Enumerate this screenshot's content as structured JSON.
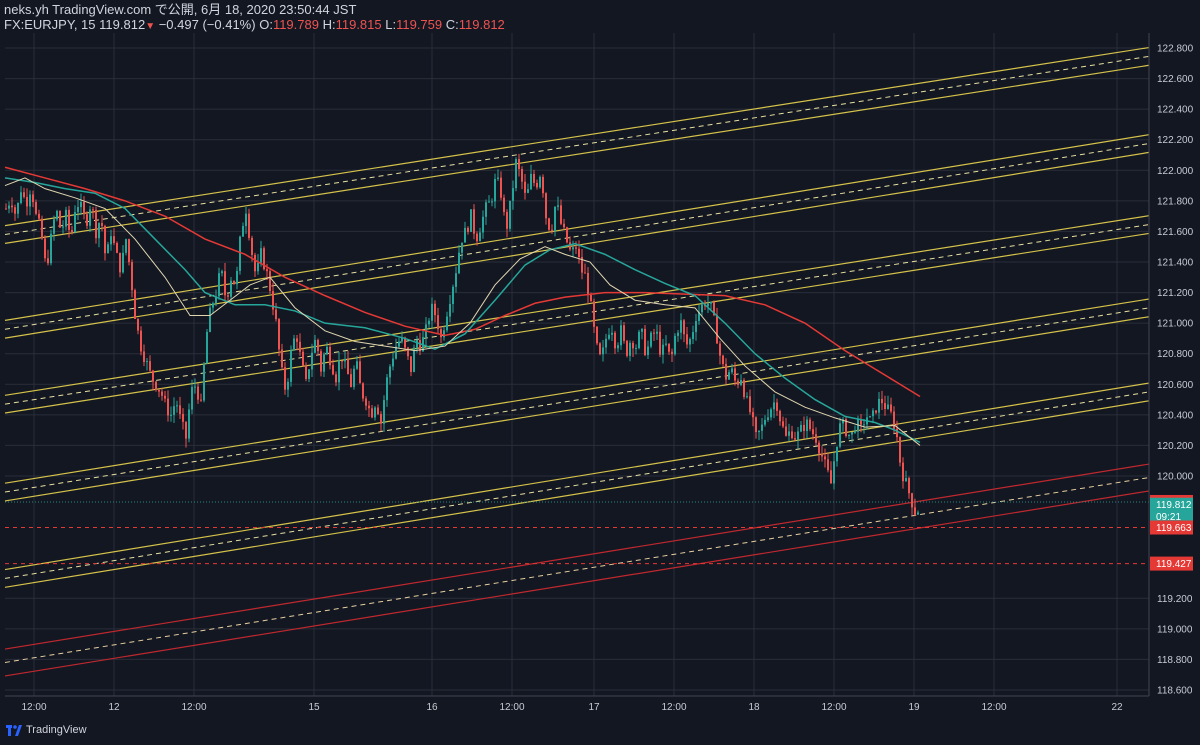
{
  "header": {
    "line1": "neks.yh TradingView.com で公開, 6月 18, 2020 23:50:44 JST",
    "symbol": "FX:EURJPY, 15",
    "price": "119.812",
    "change": "−0.497 (−0.41%)",
    "o_label": "O:",
    "o_val": "119.789",
    "h_label": "H:",
    "h_val": "119.815",
    "l_label": "L:",
    "l_val": "119.759",
    "c_label": "C:",
    "c_val": "119.812"
  },
  "footer": {
    "brand": "TradingView"
  },
  "colors": {
    "background": "#131722",
    "grid": "#2a2e39",
    "up": "#26a69a",
    "down": "#ef5350",
    "channel": "#d4c24a",
    "channel_mid": "#e8e0a0",
    "red_channel": "#c0282e",
    "ma_red": "#e53935",
    "ma_teal": "#26a69a",
    "ma_cream": "#e0d6b0"
  },
  "chart_data": {
    "type": "candlestick",
    "symbol": "FX:EURJPY",
    "interval": "15",
    "ylim": [
      118.55,
      122.88
    ],
    "y_ticks": [
      "122.800",
      "122.600",
      "122.400",
      "122.200",
      "122.000",
      "121.800",
      "121.600",
      "121.400",
      "121.200",
      "121.000",
      "120.800",
      "120.600",
      "120.400",
      "120.200",
      "120.000",
      "119.200",
      "119.000",
      "118.800",
      "118.600"
    ],
    "x_ticks": [
      "12:00",
      "12",
      "12:00",
      "15",
      "16",
      "12:00",
      "17",
      "12:00",
      "18",
      "12:00",
      "19",
      "12:00",
      "22"
    ],
    "price_labels": [
      {
        "text": "119.830",
        "value": 119.83,
        "color": "#e53935"
      },
      {
        "text": "119.812",
        "value": 119.812,
        "color": "#26a69a"
      },
      {
        "text": "09:21",
        "value": 119.735,
        "color": "#26a69a"
      },
      {
        "text": "119.663",
        "value": 119.663,
        "color": "#e53935"
      },
      {
        "text": "119.427",
        "value": 119.427,
        "color": "#e53935"
      }
    ],
    "path": [
      [
        0,
        121.75
      ],
      [
        5,
        121.82
      ],
      [
        10,
        121.7
      ],
      [
        15,
        121.88
      ],
      [
        20,
        121.78
      ],
      [
        25,
        121.9
      ],
      [
        30,
        121.7
      ],
      [
        35,
        121.6
      ],
      [
        40,
        121.35
      ],
      [
        45,
        121.55
      ],
      [
        50,
        121.75
      ],
      [
        55,
        121.6
      ],
      [
        60,
        121.7
      ],
      [
        65,
        121.55
      ],
      [
        70,
        121.8
      ],
      [
        75,
        121.75
      ],
      [
        80,
        121.65
      ],
      [
        85,
        121.8
      ],
      [
        90,
        121.6
      ],
      [
        95,
        121.7
      ],
      [
        100,
        121.4
      ],
      [
        105,
        121.6
      ],
      [
        110,
        121.45
      ],
      [
        115,
        121.35
      ],
      [
        120,
        121.55
      ],
      [
        125,
        121.3
      ],
      [
        130,
        121.0
      ],
      [
        135,
        120.85
      ],
      [
        140,
        120.75
      ],
      [
        145,
        120.65
      ],
      [
        150,
        120.6
      ],
      [
        155,
        120.55
      ],
      [
        160,
        120.45
      ],
      [
        165,
        120.4
      ],
      [
        170,
        120.5
      ],
      [
        175,
        120.35
      ],
      [
        180,
        120.25
      ],
      [
        185,
        120.55
      ],
      [
        190,
        120.6
      ],
      [
        195,
        120.45
      ],
      [
        200,
        120.9
      ],
      [
        205,
        121.1
      ],
      [
        210,
        121.2
      ],
      [
        215,
        121.35
      ],
      [
        220,
        121.15
      ],
      [
        225,
        121.3
      ],
      [
        230,
        121.25
      ],
      [
        235,
        121.6
      ],
      [
        240,
        121.75
      ],
      [
        245,
        121.5
      ],
      [
        250,
        121.3
      ],
      [
        255,
        121.45
      ],
      [
        260,
        121.35
      ],
      [
        265,
        121.2
      ],
      [
        270,
        121.0
      ],
      [
        275,
        120.7
      ],
      [
        280,
        120.55
      ],
      [
        285,
        120.8
      ],
      [
        290,
        120.95
      ],
      [
        295,
        120.75
      ],
      [
        300,
        120.6
      ],
      [
        305,
        120.8
      ],
      [
        310,
        120.9
      ],
      [
        315,
        120.7
      ],
      [
        320,
        120.85
      ],
      [
        325,
        120.75
      ],
      [
        330,
        120.65
      ],
      [
        335,
        120.8
      ],
      [
        340,
        120.7
      ],
      [
        345,
        120.6
      ],
      [
        350,
        120.75
      ],
      [
        355,
        120.55
      ],
      [
        360,
        120.5
      ],
      [
        365,
        120.4
      ],
      [
        370,
        120.5
      ],
      [
        375,
        120.35
      ],
      [
        380,
        120.6
      ],
      [
        385,
        120.75
      ],
      [
        390,
        120.85
      ],
      [
        395,
        120.9
      ],
      [
        400,
        120.8
      ],
      [
        405,
        120.7
      ],
      [
        410,
        120.9
      ],
      [
        415,
        120.85
      ],
      [
        420,
        120.95
      ],
      [
        425,
        121.1
      ],
      [
        430,
        121.05
      ],
      [
        435,
        120.9
      ],
      [
        440,
        121.05
      ],
      [
        445,
        121.2
      ],
      [
        450,
        121.35
      ],
      [
        455,
        121.55
      ],
      [
        460,
        121.6
      ],
      [
        465,
        121.7
      ],
      [
        470,
        121.55
      ],
      [
        475,
        121.65
      ],
      [
        480,
        121.75
      ],
      [
        485,
        121.8
      ],
      [
        490,
        121.95
      ],
      [
        495,
        121.85
      ],
      [
        500,
        121.6
      ],
      [
        505,
        121.8
      ],
      [
        510,
        122.05
      ],
      [
        515,
        121.95
      ],
      [
        520,
        121.8
      ],
      [
        525,
        121.95
      ],
      [
        530,
        121.9
      ],
      [
        535,
        122.0
      ],
      [
        540,
        121.7
      ],
      [
        545,
        121.6
      ],
      [
        550,
        121.8
      ],
      [
        555,
        121.65
      ],
      [
        560,
        121.55
      ],
      [
        565,
        121.45
      ],
      [
        570,
        121.5
      ],
      [
        575,
        121.35
      ],
      [
        580,
        121.3
      ],
      [
        585,
        121.1
      ],
      [
        590,
        120.85
      ],
      [
        595,
        120.75
      ],
      [
        600,
        120.9
      ],
      [
        605,
        121.0
      ],
      [
        610,
        120.85
      ],
      [
        615,
        120.95
      ],
      [
        620,
        120.8
      ],
      [
        625,
        120.9
      ],
      [
        630,
        120.85
      ],
      [
        635,
        120.95
      ],
      [
        640,
        120.8
      ],
      [
        645,
        120.9
      ],
      [
        650,
        120.95
      ],
      [
        655,
        120.8
      ],
      [
        660,
        120.85
      ],
      [
        665,
        120.75
      ],
      [
        670,
        120.95
      ],
      [
        675,
        121.0
      ],
      [
        680,
        120.85
      ],
      [
        685,
        120.9
      ],
      [
        690,
        121.05
      ],
      [
        695,
        121.1
      ],
      [
        700,
        121.15
      ],
      [
        705,
        121.1
      ],
      [
        710,
        120.95
      ],
      [
        715,
        120.75
      ],
      [
        720,
        120.65
      ],
      [
        725,
        120.7
      ],
      [
        730,
        120.6
      ],
      [
        735,
        120.65
      ],
      [
        740,
        120.5
      ],
      [
        745,
        120.4
      ],
      [
        750,
        120.25
      ],
      [
        755,
        120.3
      ],
      [
        760,
        120.4
      ],
      [
        765,
        120.45
      ],
      [
        770,
        120.5
      ],
      [
        775,
        120.35
      ],
      [
        780,
        120.25
      ],
      [
        785,
        120.3
      ],
      [
        790,
        120.25
      ],
      [
        795,
        120.3
      ],
      [
        800,
        120.35
      ],
      [
        805,
        120.3
      ],
      [
        810,
        120.25
      ],
      [
        815,
        120.15
      ],
      [
        820,
        120.05
      ],
      [
        825,
        119.95
      ],
      [
        830,
        120.2
      ],
      [
        835,
        120.35
      ],
      [
        840,
        120.3
      ],
      [
        845,
        120.25
      ],
      [
        850,
        120.35
      ],
      [
        855,
        120.3
      ],
      [
        860,
        120.4
      ],
      [
        865,
        120.35
      ],
      [
        870,
        120.45
      ],
      [
        875,
        120.5
      ],
      [
        880,
        120.45
      ],
      [
        885,
        120.4
      ],
      [
        890,
        120.3
      ],
      [
        895,
        120.05
      ],
      [
        900,
        119.95
      ],
      [
        905,
        119.85
      ],
      [
        910,
        119.75
      ],
      [
        914,
        119.81
      ]
    ],
    "channels": [
      {
        "name": "yellow-channel-top",
        "color": "#d4c24a",
        "left_center": 121.58,
        "right_center": 122.745,
        "half_width": 0.058
      },
      {
        "name": "yellow-channel-upper",
        "color": "#d4c24a",
        "left_center": 120.96,
        "right_center": 122.175,
        "half_width": 0.058
      },
      {
        "name": "yellow-channel-middle",
        "color": "#d4c24a",
        "left_center": 120.47,
        "right_center": 121.645,
        "half_width": 0.058
      },
      {
        "name": "yellow-channel-lower",
        "color": "#d4c24a",
        "left_center": 119.895,
        "right_center": 121.1,
        "half_width": 0.058
      },
      {
        "name": "yellow-channel-bottom",
        "color": "#d4c24a",
        "left_center": 119.33,
        "right_center": 120.55,
        "half_width": 0.058
      },
      {
        "name": "red-channel",
        "color": "#c0282e",
        "left_center": 118.78,
        "right_center": 119.99,
        "half_width": 0.088
      }
    ],
    "moving_averages": [
      {
        "name": "ma-red",
        "color": "#e53935",
        "points": [
          [
            0,
            122.02
          ],
          [
            40,
            121.95
          ],
          [
            80,
            121.88
          ],
          [
            120,
            121.8
          ],
          [
            160,
            121.7
          ],
          [
            200,
            121.55
          ],
          [
            240,
            121.45
          ],
          [
            280,
            121.3
          ],
          [
            320,
            121.18
          ],
          [
            360,
            121.07
          ],
          [
            400,
            120.98
          ],
          [
            440,
            120.92
          ],
          [
            470,
            120.96
          ],
          [
            500,
            121.05
          ],
          [
            530,
            121.13
          ],
          [
            560,
            121.17
          ],
          [
            600,
            121.2
          ],
          [
            640,
            121.2
          ],
          [
            680,
            121.19
          ],
          [
            720,
            121.18
          ],
          [
            760,
            121.12
          ],
          [
            800,
            121.0
          ],
          [
            840,
            120.82
          ],
          [
            870,
            120.7
          ],
          [
            895,
            120.6
          ],
          [
            915,
            120.52
          ]
        ]
      },
      {
        "name": "ma-teal",
        "color": "#26a69a",
        "points": [
          [
            0,
            121.95
          ],
          [
            30,
            121.92
          ],
          [
            60,
            121.88
          ],
          [
            90,
            121.85
          ],
          [
            120,
            121.75
          ],
          [
            150,
            121.55
          ],
          [
            180,
            121.35
          ],
          [
            200,
            121.2
          ],
          [
            230,
            121.12
          ],
          [
            260,
            121.12
          ],
          [
            290,
            121.08
          ],
          [
            320,
            121.0
          ],
          [
            360,
            120.97
          ],
          [
            400,
            120.9
          ],
          [
            430,
            120.83
          ],
          [
            460,
            120.93
          ],
          [
            490,
            121.15
          ],
          [
            520,
            121.38
          ],
          [
            545,
            121.48
          ],
          [
            570,
            121.52
          ],
          [
            600,
            121.45
          ],
          [
            630,
            121.35
          ],
          [
            660,
            121.26
          ],
          [
            690,
            121.18
          ],
          [
            720,
            121.0
          ],
          [
            750,
            120.8
          ],
          [
            780,
            120.64
          ],
          [
            810,
            120.5
          ],
          [
            840,
            120.39
          ],
          [
            870,
            120.35
          ],
          [
            890,
            120.3
          ],
          [
            915,
            120.22
          ]
        ]
      },
      {
        "name": "ma-cream",
        "color": "#e0d6b0",
        "points": [
          [
            0,
            121.9
          ],
          [
            20,
            121.95
          ],
          [
            40,
            121.88
          ],
          [
            70,
            121.82
          ],
          [
            100,
            121.75
          ],
          [
            130,
            121.55
          ],
          [
            160,
            121.3
          ],
          [
            185,
            121.05
          ],
          [
            205,
            121.05
          ],
          [
            225,
            121.15
          ],
          [
            245,
            121.25
          ],
          [
            265,
            121.3
          ],
          [
            290,
            121.1
          ],
          [
            320,
            120.95
          ],
          [
            350,
            120.88
          ],
          [
            380,
            120.85
          ],
          [
            410,
            120.82
          ],
          [
            440,
            120.85
          ],
          [
            465,
            121.0
          ],
          [
            490,
            121.25
          ],
          [
            515,
            121.42
          ],
          [
            540,
            121.5
          ],
          [
            560,
            121.45
          ],
          [
            585,
            121.4
          ],
          [
            605,
            121.25
          ],
          [
            630,
            121.15
          ],
          [
            660,
            121.12
          ],
          [
            690,
            121.1
          ],
          [
            715,
            120.9
          ],
          [
            740,
            120.72
          ],
          [
            770,
            120.55
          ],
          [
            800,
            120.45
          ],
          [
            830,
            120.38
          ],
          [
            860,
            120.32
          ],
          [
            890,
            120.33
          ],
          [
            915,
            120.2
          ]
        ]
      }
    ],
    "dashed_levels": [
      {
        "value": 119.83,
        "color": "#2a8a83",
        "style": "dotted"
      },
      {
        "value": 119.663,
        "color": "#e53935",
        "style": "dashed"
      },
      {
        "value": 119.427,
        "color": "#e53935",
        "style": "dashed"
      }
    ]
  }
}
